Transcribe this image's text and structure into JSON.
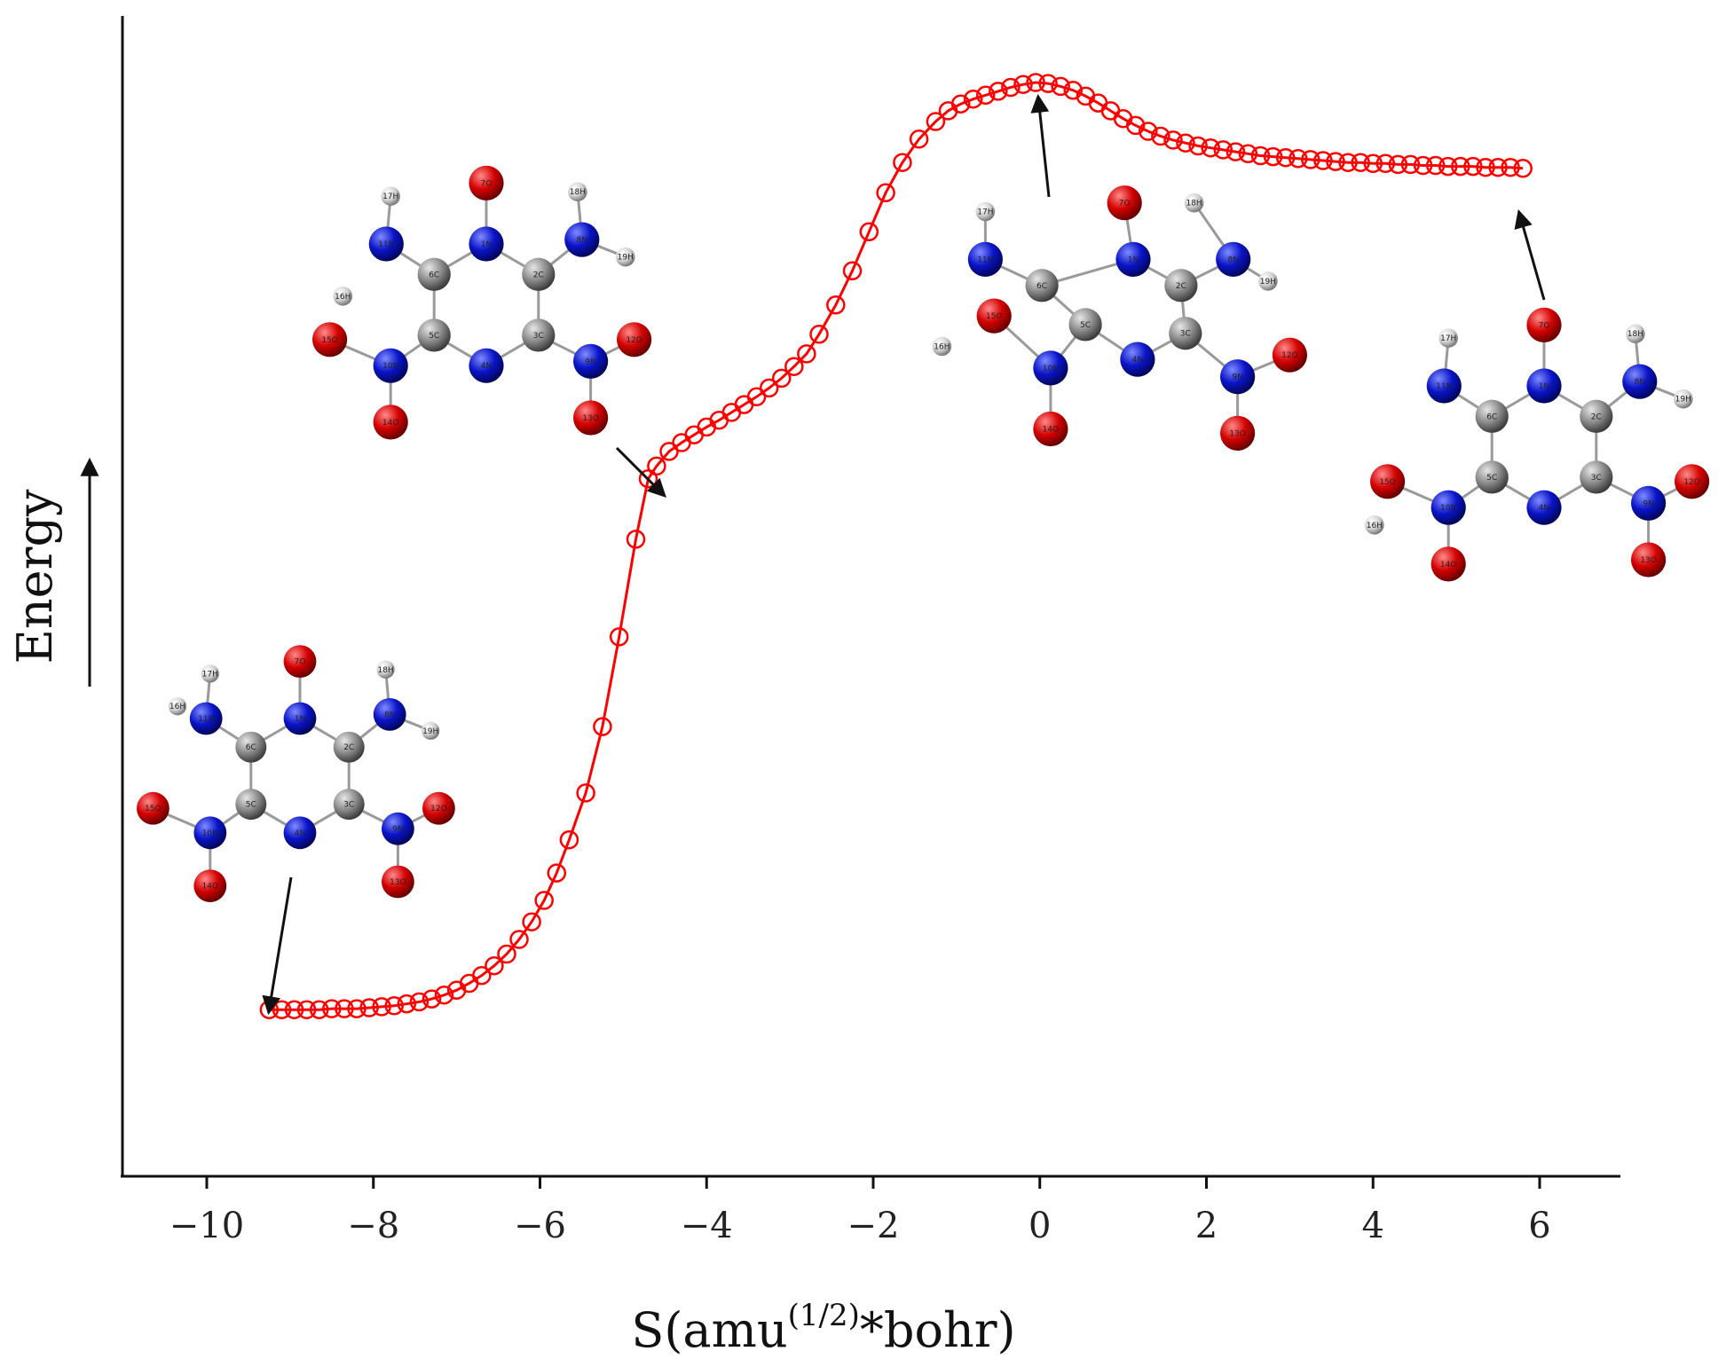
{
  "chart_data": {
    "type": "line",
    "title": "",
    "xlabel": "S(amu",
    "xlabel_superscript": "(1/2)",
    "xlabel_suffix": "*bohr)",
    "ylabel": "Energy",
    "xlim": [
      -11,
      7
    ],
    "ylim": [
      -0.3,
      10.7
    ],
    "x_ticks": [
      -10,
      -8,
      -6,
      -4,
      -2,
      0,
      2,
      4,
      6
    ],
    "x_tick_labels": [
      "−10",
      "−8",
      "−6",
      "−4",
      "−2",
      "0",
      "2",
      "4",
      "6"
    ],
    "y_ticks_shown": false,
    "grid": false,
    "legend": "none",
    "series": [
      {
        "color": "#ff0000",
        "marker": "open-circle",
        "x": [
          -9.25,
          -9.1,
          -8.95,
          -8.8,
          -8.65,
          -8.5,
          -8.35,
          -8.2,
          -8.05,
          -7.9,
          -7.75,
          -7.6,
          -7.45,
          -7.3,
          -7.15,
          -7.0,
          -6.85,
          -6.7,
          -6.55,
          -6.4,
          -6.25,
          -6.1,
          -5.95,
          -5.8,
          -5.65,
          -5.45,
          -5.25,
          -5.05,
          -4.85,
          -4.7,
          -4.6,
          -4.45,
          -4.3,
          -4.15,
          -4.0,
          -3.85,
          -3.7,
          -3.55,
          -3.4,
          -3.25,
          -3.1,
          -2.95,
          -2.8,
          -2.65,
          -2.45,
          -2.25,
          -2.05,
          -1.85,
          -1.65,
          -1.45,
          -1.25,
          -1.1,
          -0.95,
          -0.8,
          -0.65,
          -0.5,
          -0.35,
          -0.2,
          -0.05,
          0.1,
          0.25,
          0.4,
          0.55,
          0.7,
          0.85,
          1.0,
          1.15,
          1.3,
          1.45,
          1.6,
          1.75,
          1.9,
          2.05,
          2.2,
          2.35,
          2.5,
          2.65,
          2.8,
          2.95,
          3.1,
          3.25,
          3.4,
          3.55,
          3.7,
          3.85,
          4.0,
          4.15,
          4.3,
          4.45,
          4.6,
          4.75,
          4.9,
          5.05,
          5.2,
          5.35,
          5.5,
          5.65,
          5.8
        ],
        "y": [
          1.38,
          1.38,
          1.38,
          1.38,
          1.38,
          1.39,
          1.39,
          1.39,
          1.4,
          1.41,
          1.42,
          1.44,
          1.46,
          1.49,
          1.53,
          1.58,
          1.65,
          1.73,
          1.83,
          1.95,
          2.1,
          2.28,
          2.5,
          2.78,
          3.12,
          3.6,
          4.28,
          5.2,
          6.2,
          6.82,
          6.95,
          7.1,
          7.19,
          7.27,
          7.35,
          7.42,
          7.5,
          7.58,
          7.66,
          7.75,
          7.85,
          7.97,
          8.1,
          8.3,
          8.6,
          8.95,
          9.35,
          9.75,
          10.06,
          10.3,
          10.48,
          10.59,
          10.66,
          10.71,
          10.75,
          10.79,
          10.83,
          10.86,
          10.88,
          10.87,
          10.84,
          10.8,
          10.74,
          10.67,
          10.59,
          10.51,
          10.44,
          10.38,
          10.33,
          10.29,
          10.26,
          10.23,
          10.21,
          10.19,
          10.17,
          10.15,
          10.13,
          10.12,
          10.11,
          10.1,
          10.09,
          10.08,
          10.07,
          10.06,
          10.06,
          10.05,
          10.05,
          10.04,
          10.04,
          10.03,
          10.03,
          10.02,
          10.02,
          10.02,
          10.01,
          10.01,
          10.01,
          10.0
        ]
      }
    ]
  },
  "colors": {
    "curve": "#ff0000",
    "axis": "#111111",
    "oxygen": "#d40000",
    "nitrogen": "#0a14c8",
    "carbon": "#8c8c8c",
    "hydrogen": "#cfcfcf"
  },
  "molecules": [
    {
      "id": "reactant",
      "atoms": [
        {
          "el": "O",
          "label": "7O"
        },
        {
          "el": "N",
          "label": "1N"
        },
        {
          "el": "C",
          "label": "2C"
        },
        {
          "el": "C",
          "label": "3C"
        },
        {
          "el": "N",
          "label": "4N"
        },
        {
          "el": "C",
          "label": "5C"
        },
        {
          "el": "C",
          "label": "6C"
        },
        {
          "el": "N",
          "label": "8N"
        },
        {
          "el": "N",
          "label": "9N"
        },
        {
          "el": "N",
          "label": "10N"
        },
        {
          "el": "N",
          "label": "11N"
        },
        {
          "el": "O",
          "label": "12O"
        },
        {
          "el": "O",
          "label": "13O"
        },
        {
          "el": "O",
          "label": "14O"
        },
        {
          "el": "O",
          "label": "15O"
        },
        {
          "el": "H",
          "label": "16H"
        },
        {
          "el": "H",
          "label": "17H"
        },
        {
          "el": "H",
          "label": "18H"
        },
        {
          "el": "H",
          "label": "19H"
        }
      ]
    },
    {
      "id": "intermediate",
      "atoms": [
        {
          "el": "O",
          "label": "7O"
        },
        {
          "el": "N",
          "label": "1N"
        },
        {
          "el": "C",
          "label": "2C"
        },
        {
          "el": "C",
          "label": "3C"
        },
        {
          "el": "N",
          "label": "4N"
        },
        {
          "el": "C",
          "label": "5C"
        },
        {
          "el": "C",
          "label": "6C"
        },
        {
          "el": "N",
          "label": "8N"
        },
        {
          "el": "N",
          "label": "9N"
        },
        {
          "el": "N",
          "label": "10N"
        },
        {
          "el": "N",
          "label": "11N"
        },
        {
          "el": "O",
          "label": "12O"
        },
        {
          "el": "O",
          "label": "13O"
        },
        {
          "el": "O",
          "label": "14O"
        },
        {
          "el": "O",
          "label": "15O"
        },
        {
          "el": "H",
          "label": "16H"
        },
        {
          "el": "H",
          "label": "17H"
        },
        {
          "el": "H",
          "label": "18H"
        },
        {
          "el": "H",
          "label": "19H"
        }
      ]
    },
    {
      "id": "transition-state",
      "atoms": [
        {
          "el": "O",
          "label": "7O"
        },
        {
          "el": "N",
          "label": "1N"
        },
        {
          "el": "C",
          "label": "2C"
        },
        {
          "el": "C",
          "label": "3C"
        },
        {
          "el": "N",
          "label": "4N"
        },
        {
          "el": "C",
          "label": "5C"
        },
        {
          "el": "C",
          "label": "6C"
        },
        {
          "el": "N",
          "label": "8N"
        },
        {
          "el": "N",
          "label": "9N"
        },
        {
          "el": "N",
          "label": "10N"
        },
        {
          "el": "N",
          "label": "11N"
        },
        {
          "el": "O",
          "label": "12O"
        },
        {
          "el": "O",
          "label": "13O"
        },
        {
          "el": "O",
          "label": "14O"
        },
        {
          "el": "O",
          "label": "15O"
        },
        {
          "el": "H",
          "label": "16H"
        },
        {
          "el": "H",
          "label": "17H"
        },
        {
          "el": "H",
          "label": "18H"
        },
        {
          "el": "H",
          "label": "19H"
        }
      ]
    },
    {
      "id": "product",
      "atoms": [
        {
          "el": "O",
          "label": "7O"
        },
        {
          "el": "N",
          "label": "1N"
        },
        {
          "el": "C",
          "label": "2C"
        },
        {
          "el": "C",
          "label": "3C"
        },
        {
          "el": "N",
          "label": "4N"
        },
        {
          "el": "C",
          "label": "5C"
        },
        {
          "el": "C",
          "label": "6C"
        },
        {
          "el": "N",
          "label": "8N"
        },
        {
          "el": "N",
          "label": "9N"
        },
        {
          "el": "N",
          "label": "10N"
        },
        {
          "el": "N",
          "label": "11N"
        },
        {
          "el": "O",
          "label": "12O"
        },
        {
          "el": "O",
          "label": "13O"
        },
        {
          "el": "O",
          "label": "14O"
        },
        {
          "el": "O",
          "label": "15O"
        },
        {
          "el": "H",
          "label": "16H"
        },
        {
          "el": "H",
          "label": "17H"
        },
        {
          "el": "H",
          "label": "18H"
        },
        {
          "el": "H",
          "label": "19H"
        }
      ]
    }
  ]
}
